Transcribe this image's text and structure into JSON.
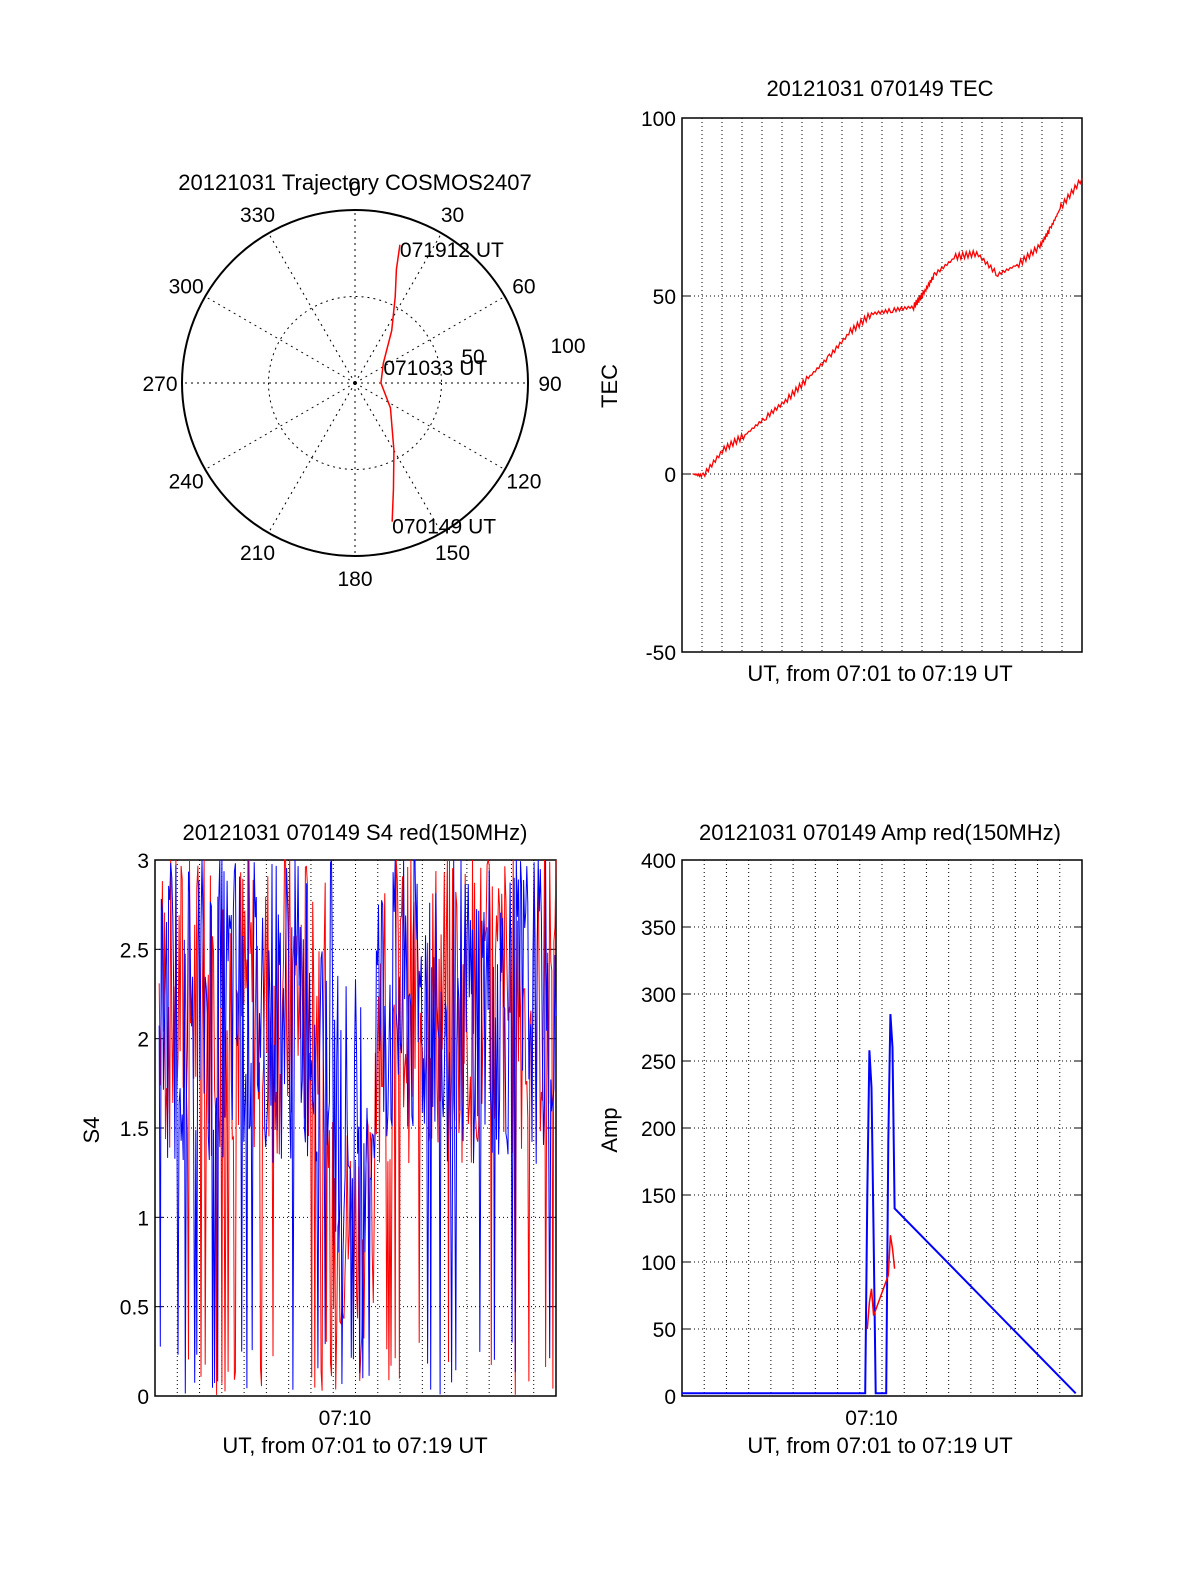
{
  "colors": {
    "red": "#ff0000",
    "blue": "#0000ff",
    "axis": "#000000"
  },
  "chart_data": [
    {
      "type": "polar",
      "title": "20121031 Trajectory COSMOS2407",
      "azimuth_labels": [
        "0",
        "30",
        "60",
        "90",
        "120",
        "150",
        "180",
        "210",
        "240",
        "270",
        "300",
        "330"
      ],
      "radial_labels": [
        "50",
        "100"
      ],
      "trajectory": {
        "color": "red",
        "points": [
          {
            "az": 165,
            "r": 83,
            "time": "070149 UT"
          },
          {
            "az": 160,
            "r": 65
          },
          {
            "az": 150,
            "r": 45
          },
          {
            "az": 125,
            "r": 25
          },
          {
            "az": 90,
            "r": 15
          },
          {
            "az": 55,
            "r": 20,
            "time": "071033 UT"
          },
          {
            "az": 35,
            "r": 37
          },
          {
            "az": 25,
            "r": 55
          },
          {
            "az": 20,
            "r": 70
          },
          {
            "az": 18,
            "r": 84,
            "time": "071912 UT"
          }
        ]
      }
    },
    {
      "type": "line",
      "title": "20121031 070149 TEC",
      "ylabel": "TEC",
      "xlabel": "UT, from 07:01 to 07:19 UT",
      "ylim": [
        -50,
        100
      ],
      "yticks": [
        "-50",
        "0",
        "50",
        "100"
      ],
      "series": [
        {
          "color": "red",
          "x": [
            0.5,
            1,
            2,
            3,
            4,
            5,
            6,
            7,
            8,
            9,
            10,
            11,
            11.5,
            12,
            13,
            14,
            15,
            16,
            17,
            17.5,
            18,
            19
          ],
          "y": [
            0,
            -0.5,
            7,
            11,
            16,
            21,
            27,
            33,
            40,
            45,
            46,
            47,
            51,
            56,
            61,
            62,
            56,
            59,
            64,
            69,
            75,
            83
          ]
        }
      ]
    },
    {
      "type": "line",
      "title": "20121031 070149 S4 red(150MHz)",
      "ylabel": "S4",
      "xlabel": "UT, from 07:01 to 07:19 UT",
      "ylim": [
        0,
        3
      ],
      "yticks": [
        "0",
        "0.5",
        "1",
        "1.5",
        "2",
        "2.5",
        "3"
      ],
      "xticks": [
        {
          "x": 9,
          "label": "07:10"
        }
      ],
      "series": [
        {
          "color": "red"
        },
        {
          "color": "blue"
        }
      ]
    },
    {
      "type": "line",
      "title": "20121031 070149 Amp red(150MHz)",
      "ylabel": "Amp",
      "xlabel": "UT, from 07:01 to 07:19 UT",
      "ylim": [
        0,
        400
      ],
      "yticks": [
        "0",
        "50",
        "100",
        "150",
        "200",
        "250",
        "300",
        "350",
        "400"
      ],
      "xticks": [
        {
          "x": 9,
          "label": "07:10"
        }
      ],
      "series": [
        {
          "color": "blue",
          "x": [
            0,
            8.7,
            8.8,
            8.9,
            9.0,
            9.1,
            9.2,
            9.7,
            9.8,
            9.9,
            10.0,
            10.1,
            18.7
          ],
          "y": [
            2,
            2,
            150,
            258,
            230,
            120,
            2,
            2,
            190,
            285,
            260,
            140,
            2
          ]
        },
        {
          "color": "red",
          "x": [
            8.8,
            8.9,
            9.0,
            9.1,
            9.8,
            9.9,
            10.0,
            10.1
          ],
          "y": [
            50,
            70,
            80,
            60,
            90,
            120,
            110,
            95
          ]
        }
      ]
    }
  ]
}
